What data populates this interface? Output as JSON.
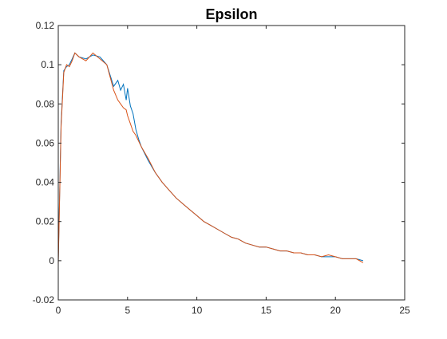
{
  "chart_data": {
    "type": "line",
    "title": "Epsilon",
    "xlabel": "",
    "ylabel": "",
    "xlim": [
      0,
      25
    ],
    "ylim": [
      -0.02,
      0.12
    ],
    "xticks": [
      0,
      5,
      10,
      15,
      20,
      25
    ],
    "yticks": [
      -0.02,
      0,
      0.02,
      0.04,
      0.06,
      0.08,
      0.1,
      0.12
    ],
    "xtick_labels": [
      "0",
      "5",
      "10",
      "15",
      "20",
      "25"
    ],
    "ytick_labels": [
      "-0.02",
      "0",
      "0.02",
      "0.04",
      "0.06",
      "0.08",
      "0.1",
      "0.12"
    ],
    "grid": false,
    "legend": "none",
    "colors": {
      "series1": "#0072BD",
      "series2": "#D95319",
      "axes": "#262626"
    },
    "series": [
      {
        "x": [
          0,
          0.2,
          0.4,
          0.6,
          0.8,
          1.0,
          1.2,
          1.5,
          2.0,
          2.5,
          3.0,
          3.5,
          4.0,
          4.3,
          4.5,
          4.7,
          4.9,
          5.0,
          5.2,
          5.4,
          5.6,
          5.8,
          6.0,
          6.5,
          7.0,
          7.5,
          8.0,
          8.5,
          9.0,
          9.5,
          10.0,
          10.5,
          11.0,
          11.5,
          12.0,
          12.5,
          13.0,
          13.5,
          14.0,
          14.5,
          15.0,
          15.5,
          16.0,
          16.5,
          17.0,
          17.5,
          18.0,
          18.5,
          19.0,
          19.5,
          20.0,
          20.5,
          21.0,
          21.5,
          22.0
        ],
        "y": [
          0.0,
          0.07,
          0.097,
          0.099,
          0.1,
          0.103,
          0.106,
          0.104,
          0.103,
          0.105,
          0.104,
          0.1,
          0.089,
          0.092,
          0.087,
          0.09,
          0.082,
          0.088,
          0.079,
          0.075,
          0.067,
          0.062,
          0.058,
          0.051,
          0.045,
          0.04,
          0.036,
          0.032,
          0.029,
          0.026,
          0.023,
          0.02,
          0.018,
          0.016,
          0.014,
          0.012,
          0.011,
          0.009,
          0.008,
          0.007,
          0.007,
          0.006,
          0.005,
          0.005,
          0.004,
          0.004,
          0.003,
          0.003,
          0.002,
          0.002,
          0.002,
          0.001,
          0.001,
          0.001,
          0.0
        ]
      },
      {
        "x": [
          0,
          0.2,
          0.4,
          0.6,
          0.8,
          1.0,
          1.2,
          1.5,
          2.0,
          2.5,
          3.0,
          3.5,
          4.0,
          4.3,
          4.5,
          4.7,
          4.9,
          5.0,
          5.2,
          5.4,
          5.6,
          5.8,
          6.0,
          6.5,
          7.0,
          7.5,
          8.0,
          8.5,
          9.0,
          9.5,
          10.0,
          10.5,
          11.0,
          11.5,
          12.0,
          12.5,
          13.0,
          13.5,
          14.0,
          14.5,
          15.0,
          15.5,
          16.0,
          16.5,
          17.0,
          17.5,
          18.0,
          18.5,
          19.0,
          19.5,
          20.0,
          20.5,
          21.0,
          21.5,
          22.0
        ],
        "y": [
          -0.002,
          0.068,
          0.096,
          0.1,
          0.099,
          0.102,
          0.106,
          0.104,
          0.102,
          0.106,
          0.103,
          0.1,
          0.087,
          0.082,
          0.08,
          0.078,
          0.077,
          0.074,
          0.07,
          0.066,
          0.064,
          0.061,
          0.058,
          0.052,
          0.045,
          0.04,
          0.036,
          0.032,
          0.029,
          0.026,
          0.023,
          0.02,
          0.018,
          0.016,
          0.014,
          0.012,
          0.011,
          0.009,
          0.008,
          0.007,
          0.007,
          0.006,
          0.005,
          0.005,
          0.004,
          0.004,
          0.003,
          0.003,
          0.002,
          0.003,
          0.002,
          0.001,
          0.001,
          0.001,
          -0.001
        ]
      }
    ]
  }
}
